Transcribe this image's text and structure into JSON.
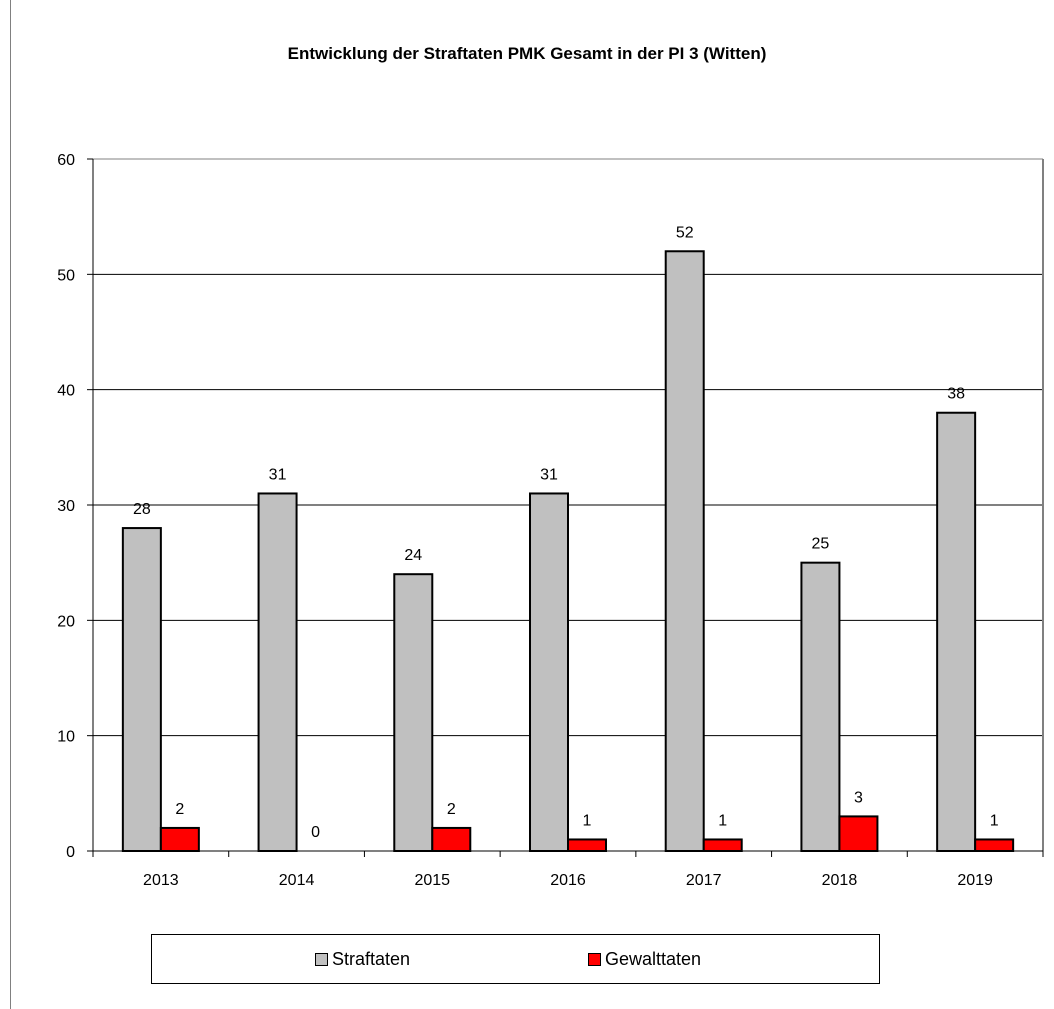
{
  "chart_data": {
    "type": "bar",
    "title": "Entwicklung der Straftaten PMK Gesamt in der PI 3 (Witten)",
    "xlabel": "",
    "ylabel": "",
    "categories": [
      "2013",
      "2014",
      "2015",
      "2016",
      "2017",
      "2018",
      "2019"
    ],
    "ylim": [
      0,
      60
    ],
    "yticks": [
      0,
      10,
      20,
      30,
      40,
      50,
      60
    ],
    "grid": true,
    "legend_position": "bottom",
    "series": [
      {
        "name": "Straftaten",
        "color": "#c0c0c0",
        "values": [
          28,
          31,
          24,
          31,
          52,
          25,
          38
        ]
      },
      {
        "name": "Gewalttaten",
        "color": "#ff0000",
        "values": [
          2,
          0,
          2,
          1,
          1,
          3,
          1
        ]
      }
    ]
  }
}
